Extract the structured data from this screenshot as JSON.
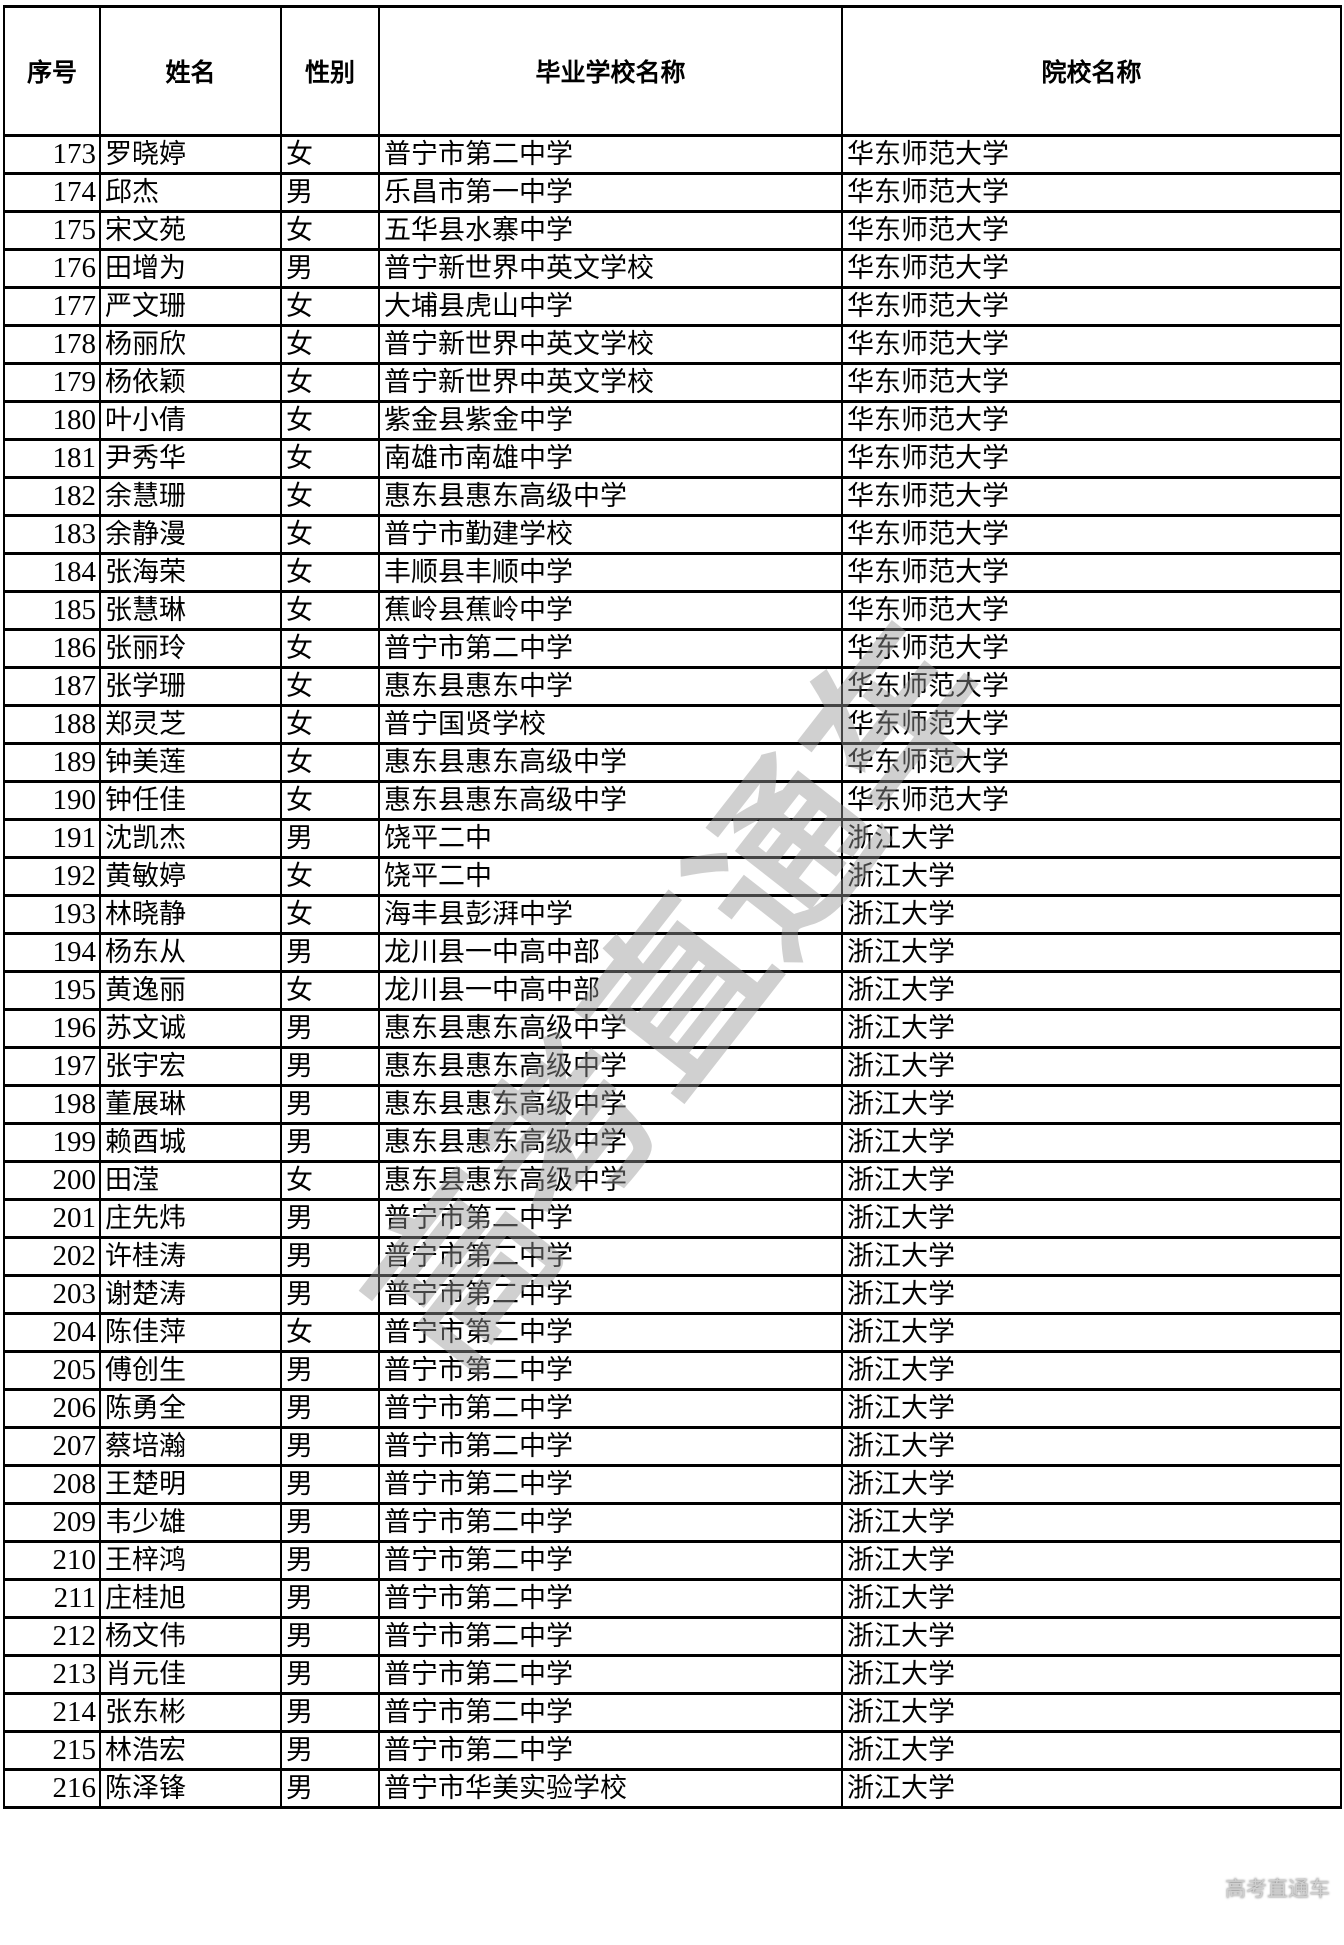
{
  "headers": [
    "序号",
    "姓名",
    "性别",
    "毕业学校名称",
    "院校名称"
  ],
  "rows": [
    [
      "173",
      "罗晓婷",
      "女",
      "普宁市第二中学",
      "华东师范大学"
    ],
    [
      "174",
      "邱杰",
      "男",
      "乐昌市第一中学",
      "华东师范大学"
    ],
    [
      "175",
      "宋文苑",
      "女",
      "五华县水寨中学",
      "华东师范大学"
    ],
    [
      "176",
      "田增为",
      "男",
      "普宁新世界中英文学校",
      "华东师范大学"
    ],
    [
      "177",
      "严文珊",
      "女",
      "大埔县虎山中学",
      "华东师范大学"
    ],
    [
      "178",
      "杨丽欣",
      "女",
      "普宁新世界中英文学校",
      "华东师范大学"
    ],
    [
      "179",
      "杨依颖",
      "女",
      "普宁新世界中英文学校",
      "华东师范大学"
    ],
    [
      "180",
      "叶小倩",
      "女",
      "紫金县紫金中学",
      "华东师范大学"
    ],
    [
      "181",
      "尹秀华",
      "女",
      "南雄市南雄中学",
      "华东师范大学"
    ],
    [
      "182",
      "余慧珊",
      "女",
      "惠东县惠东高级中学",
      "华东师范大学"
    ],
    [
      "183",
      "余静漫",
      "女",
      "普宁市勤建学校",
      "华东师范大学"
    ],
    [
      "184",
      "张海荣",
      "女",
      "丰顺县丰顺中学",
      "华东师范大学"
    ],
    [
      "185",
      "张慧琳",
      "女",
      "蕉岭县蕉岭中学",
      "华东师范大学"
    ],
    [
      "186",
      "张丽玲",
      "女",
      "普宁市第二中学",
      "华东师范大学"
    ],
    [
      "187",
      "张学珊",
      "女",
      "惠东县惠东中学",
      "华东师范大学"
    ],
    [
      "188",
      "郑灵芝",
      "女",
      "普宁国贤学校",
      "华东师范大学"
    ],
    [
      "189",
      "钟美莲",
      "女",
      "惠东县惠东高级中学",
      "华东师范大学"
    ],
    [
      "190",
      "钟任佳",
      "女",
      "惠东县惠东高级中学",
      "华东师范大学"
    ],
    [
      "191",
      "沈凯杰",
      "男",
      "饶平二中",
      "浙江大学"
    ],
    [
      "192",
      "黄敏婷",
      "女",
      "饶平二中",
      "浙江大学"
    ],
    [
      "193",
      "林晓静",
      "女",
      "海丰县彭湃中学",
      "浙江大学"
    ],
    [
      "194",
      "杨东从",
      "男",
      "龙川县一中高中部",
      "浙江大学"
    ],
    [
      "195",
      "黄逸丽",
      "女",
      "龙川县一中高中部",
      "浙江大学"
    ],
    [
      "196",
      "苏文诚",
      "男",
      "惠东县惠东高级中学",
      "浙江大学"
    ],
    [
      "197",
      "张宇宏",
      "男",
      "惠东县惠东高级中学",
      "浙江大学"
    ],
    [
      "198",
      "董展琳",
      "男",
      "惠东县惠东高级中学",
      "浙江大学"
    ],
    [
      "199",
      "赖酉城",
      "男",
      "惠东县惠东高级中学",
      "浙江大学"
    ],
    [
      "200",
      "田滢",
      "女",
      "惠东县惠东高级中学",
      "浙江大学"
    ],
    [
      "201",
      "庄先炜",
      "男",
      "普宁市第二中学",
      "浙江大学"
    ],
    [
      "202",
      "许桂涛",
      "男",
      "普宁市第二中学",
      "浙江大学"
    ],
    [
      "203",
      "谢楚涛",
      "男",
      "普宁市第二中学",
      "浙江大学"
    ],
    [
      "204",
      "陈佳萍",
      "女",
      "普宁市第二中学",
      "浙江大学"
    ],
    [
      "205",
      "傅创生",
      "男",
      "普宁市第二中学",
      "浙江大学"
    ],
    [
      "206",
      "陈勇全",
      "男",
      "普宁市第二中学",
      "浙江大学"
    ],
    [
      "207",
      "蔡培瀚",
      "男",
      "普宁市第二中学",
      "浙江大学"
    ],
    [
      "208",
      "王楚明",
      "男",
      "普宁市第二中学",
      "浙江大学"
    ],
    [
      "209",
      "韦少雄",
      "男",
      "普宁市第二中学",
      "浙江大学"
    ],
    [
      "210",
      "王梓鸿",
      "男",
      "普宁市第二中学",
      "浙江大学"
    ],
    [
      "211",
      "庄桂旭",
      "男",
      "普宁市第二中学",
      "浙江大学"
    ],
    [
      "212",
      "杨文伟",
      "男",
      "普宁市第二中学",
      "浙江大学"
    ],
    [
      "213",
      "肖元佳",
      "男",
      "普宁市第二中学",
      "浙江大学"
    ],
    [
      "214",
      "张东彬",
      "男",
      "普宁市第二中学",
      "浙江大学"
    ],
    [
      "215",
      "林浩宏",
      "男",
      "普宁市第二中学",
      "浙江大学"
    ],
    [
      "216",
      "陈泽锋",
      "男",
      "普宁市华美实验学校",
      "浙江大学"
    ]
  ],
  "watermark": "高考直通车"
}
